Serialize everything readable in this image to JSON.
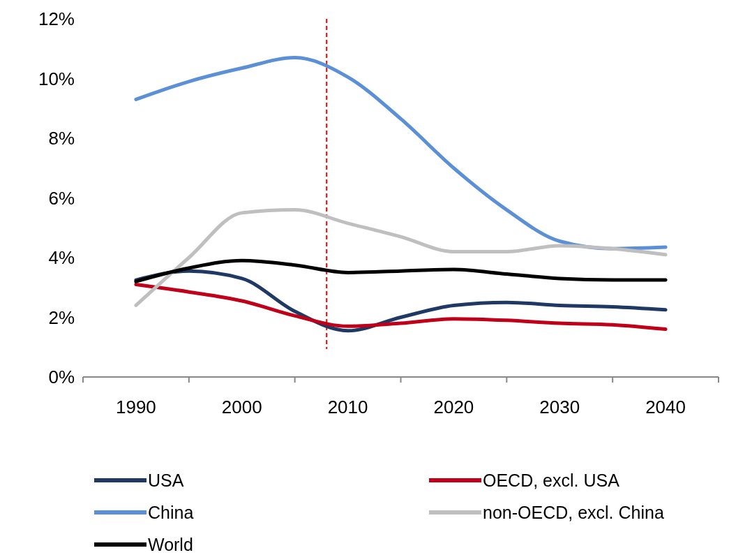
{
  "chart_data": {
    "type": "line",
    "x": [
      1990,
      1995,
      2000,
      2005,
      2010,
      2015,
      2020,
      2025,
      2030,
      2035,
      2040
    ],
    "xlim": [
      1985,
      2045
    ],
    "xticks": [
      {
        "value": 1985,
        "label": null
      },
      {
        "value": 1990,
        "label": "1990"
      },
      {
        "value": 1995,
        "label": null
      },
      {
        "value": 2000,
        "label": "2000"
      },
      {
        "value": 2005,
        "label": null
      },
      {
        "value": 2010,
        "label": "2010"
      },
      {
        "value": 2015,
        "label": null
      },
      {
        "value": 2020,
        "label": "2020"
      },
      {
        "value": 2025,
        "label": null
      },
      {
        "value": 2030,
        "label": "2030"
      },
      {
        "value": 2035,
        "label": null
      },
      {
        "value": 2040,
        "label": "2040"
      },
      {
        "value": 2045,
        "label": null
      }
    ],
    "ylim": [
      0,
      12
    ],
    "yticks": [
      {
        "value": 0,
        "label": "0%"
      },
      {
        "value": 2,
        "label": "2%"
      },
      {
        "value": 4,
        "label": "4%"
      },
      {
        "value": 6,
        "label": "6%"
      },
      {
        "value": 8,
        "label": "8%"
      },
      {
        "value": 10,
        "label": "10%"
      },
      {
        "value": 12,
        "label": "12%"
      }
    ],
    "series": [
      {
        "name": "USA",
        "color": "#1f3864",
        "values": [
          3.25,
          3.55,
          3.3,
          2.2,
          1.55,
          2.0,
          2.4,
          2.5,
          2.4,
          2.35,
          2.25
        ]
      },
      {
        "name": "OECD, excl. USA",
        "color": "#c00018",
        "values": [
          3.1,
          2.85,
          2.55,
          2.05,
          1.7,
          1.8,
          1.95,
          1.9,
          1.8,
          1.75,
          1.6
        ]
      },
      {
        "name": "China",
        "color": "#5b8fd6",
        "values": [
          9.3,
          9.9,
          10.35,
          10.7,
          10.05,
          8.65,
          7.0,
          5.6,
          4.55,
          4.3,
          4.35
        ]
      },
      {
        "name": "non-OECD, excl. China",
        "color": "#bfbfbf",
        "values": [
          2.4,
          4.0,
          5.5,
          5.6,
          5.15,
          4.7,
          4.2,
          4.2,
          4.4,
          4.3,
          4.1
        ]
      },
      {
        "name": "World",
        "color": "#000000",
        "values": [
          3.2,
          3.65,
          3.9,
          3.75,
          3.5,
          3.55,
          3.6,
          3.45,
          3.3,
          3.25,
          3.25
        ]
      }
    ],
    "ref_lines": [
      {
        "axis": "x",
        "value": 2008,
        "color": "#ff0000",
        "line_style": "dashed"
      }
    ],
    "legend": "bottom",
    "grid": false,
    "marker": "none",
    "line_style": "solid"
  }
}
